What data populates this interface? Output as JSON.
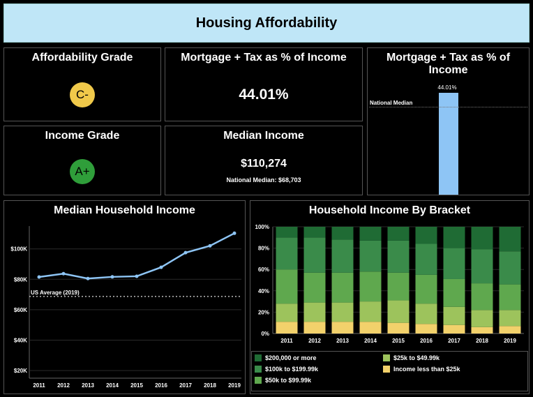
{
  "header": {
    "title": "Housing Affordability"
  },
  "affordability": {
    "title": "Affordability Grade",
    "grade": "C-",
    "color": "#f0c94a"
  },
  "mortgage_kpi": {
    "title": "Mortgage + Tax as % of Income",
    "value": "44.01%"
  },
  "income_grade": {
    "title": "Income Grade",
    "grade": "A+",
    "color": "#2f9e3a"
  },
  "median_income": {
    "title": "Median Income",
    "value": "$110,274",
    "national": "National Median: $68,703"
  },
  "mortgage_bar": {
    "title": "Mortgage + Tax as % of Income",
    "value_label": "44.01%",
    "ref_label": "National Median",
    "color": "#8ec5f5"
  },
  "line_panel": {
    "title": "Median Household Income",
    "ref_label": "US Average (2019)"
  },
  "bracket_panel": {
    "title": "Household Income By Bracket"
  },
  "chart_data": [
    {
      "type": "line",
      "title": "Median Household Income",
      "x": [
        "2011",
        "2012",
        "2013",
        "2014",
        "2015",
        "2016",
        "2017",
        "2018",
        "2019"
      ],
      "series": [
        {
          "values": [
            81500,
            83700,
            80500,
            81600,
            82000,
            87900,
            97500,
            102000,
            110274
          ]
        }
      ],
      "reference_line": {
        "label": "US Average (2019)",
        "value": 68703
      },
      "yticks": [
        "$20K",
        "$40K",
        "$60K",
        "$80K",
        "$100K"
      ],
      "ylim": [
        15000,
        115000
      ],
      "color": "#8ec5f5"
    },
    {
      "type": "bar",
      "title": "Household Income By Bracket",
      "stacked": true,
      "categories": [
        "2011",
        "2012",
        "2013",
        "2014",
        "2015",
        "2016",
        "2017",
        "2018",
        "2019"
      ],
      "yticks": [
        "0%",
        "20%",
        "40%",
        "60%",
        "80%",
        "100%"
      ],
      "series": [
        {
          "name": "Income less than $25k",
          "color": "#f2d16b",
          "values": [
            11,
            11,
            11,
            11,
            10,
            9,
            8,
            6,
            7
          ]
        },
        {
          "name": "$25k to $49.99k",
          "color": "#9dc35c",
          "values": [
            17,
            18,
            18,
            19,
            21,
            19,
            17,
            16,
            15
          ]
        },
        {
          "name": "$50k to $99.99k",
          "color": "#5fa84e",
          "values": [
            32,
            28,
            28,
            28,
            26,
            27,
            26,
            25,
            24
          ]
        },
        {
          "name": "$100k to $199.99k",
          "color": "#3a8b4a",
          "values": [
            30,
            33,
            31,
            29,
            30,
            29,
            29,
            32,
            31
          ]
        },
        {
          "name": "$200,000 or more",
          "color": "#1f6b34",
          "values": [
            10,
            10,
            12,
            13,
            13,
            16,
            20,
            21,
            23
          ]
        }
      ]
    }
  ]
}
